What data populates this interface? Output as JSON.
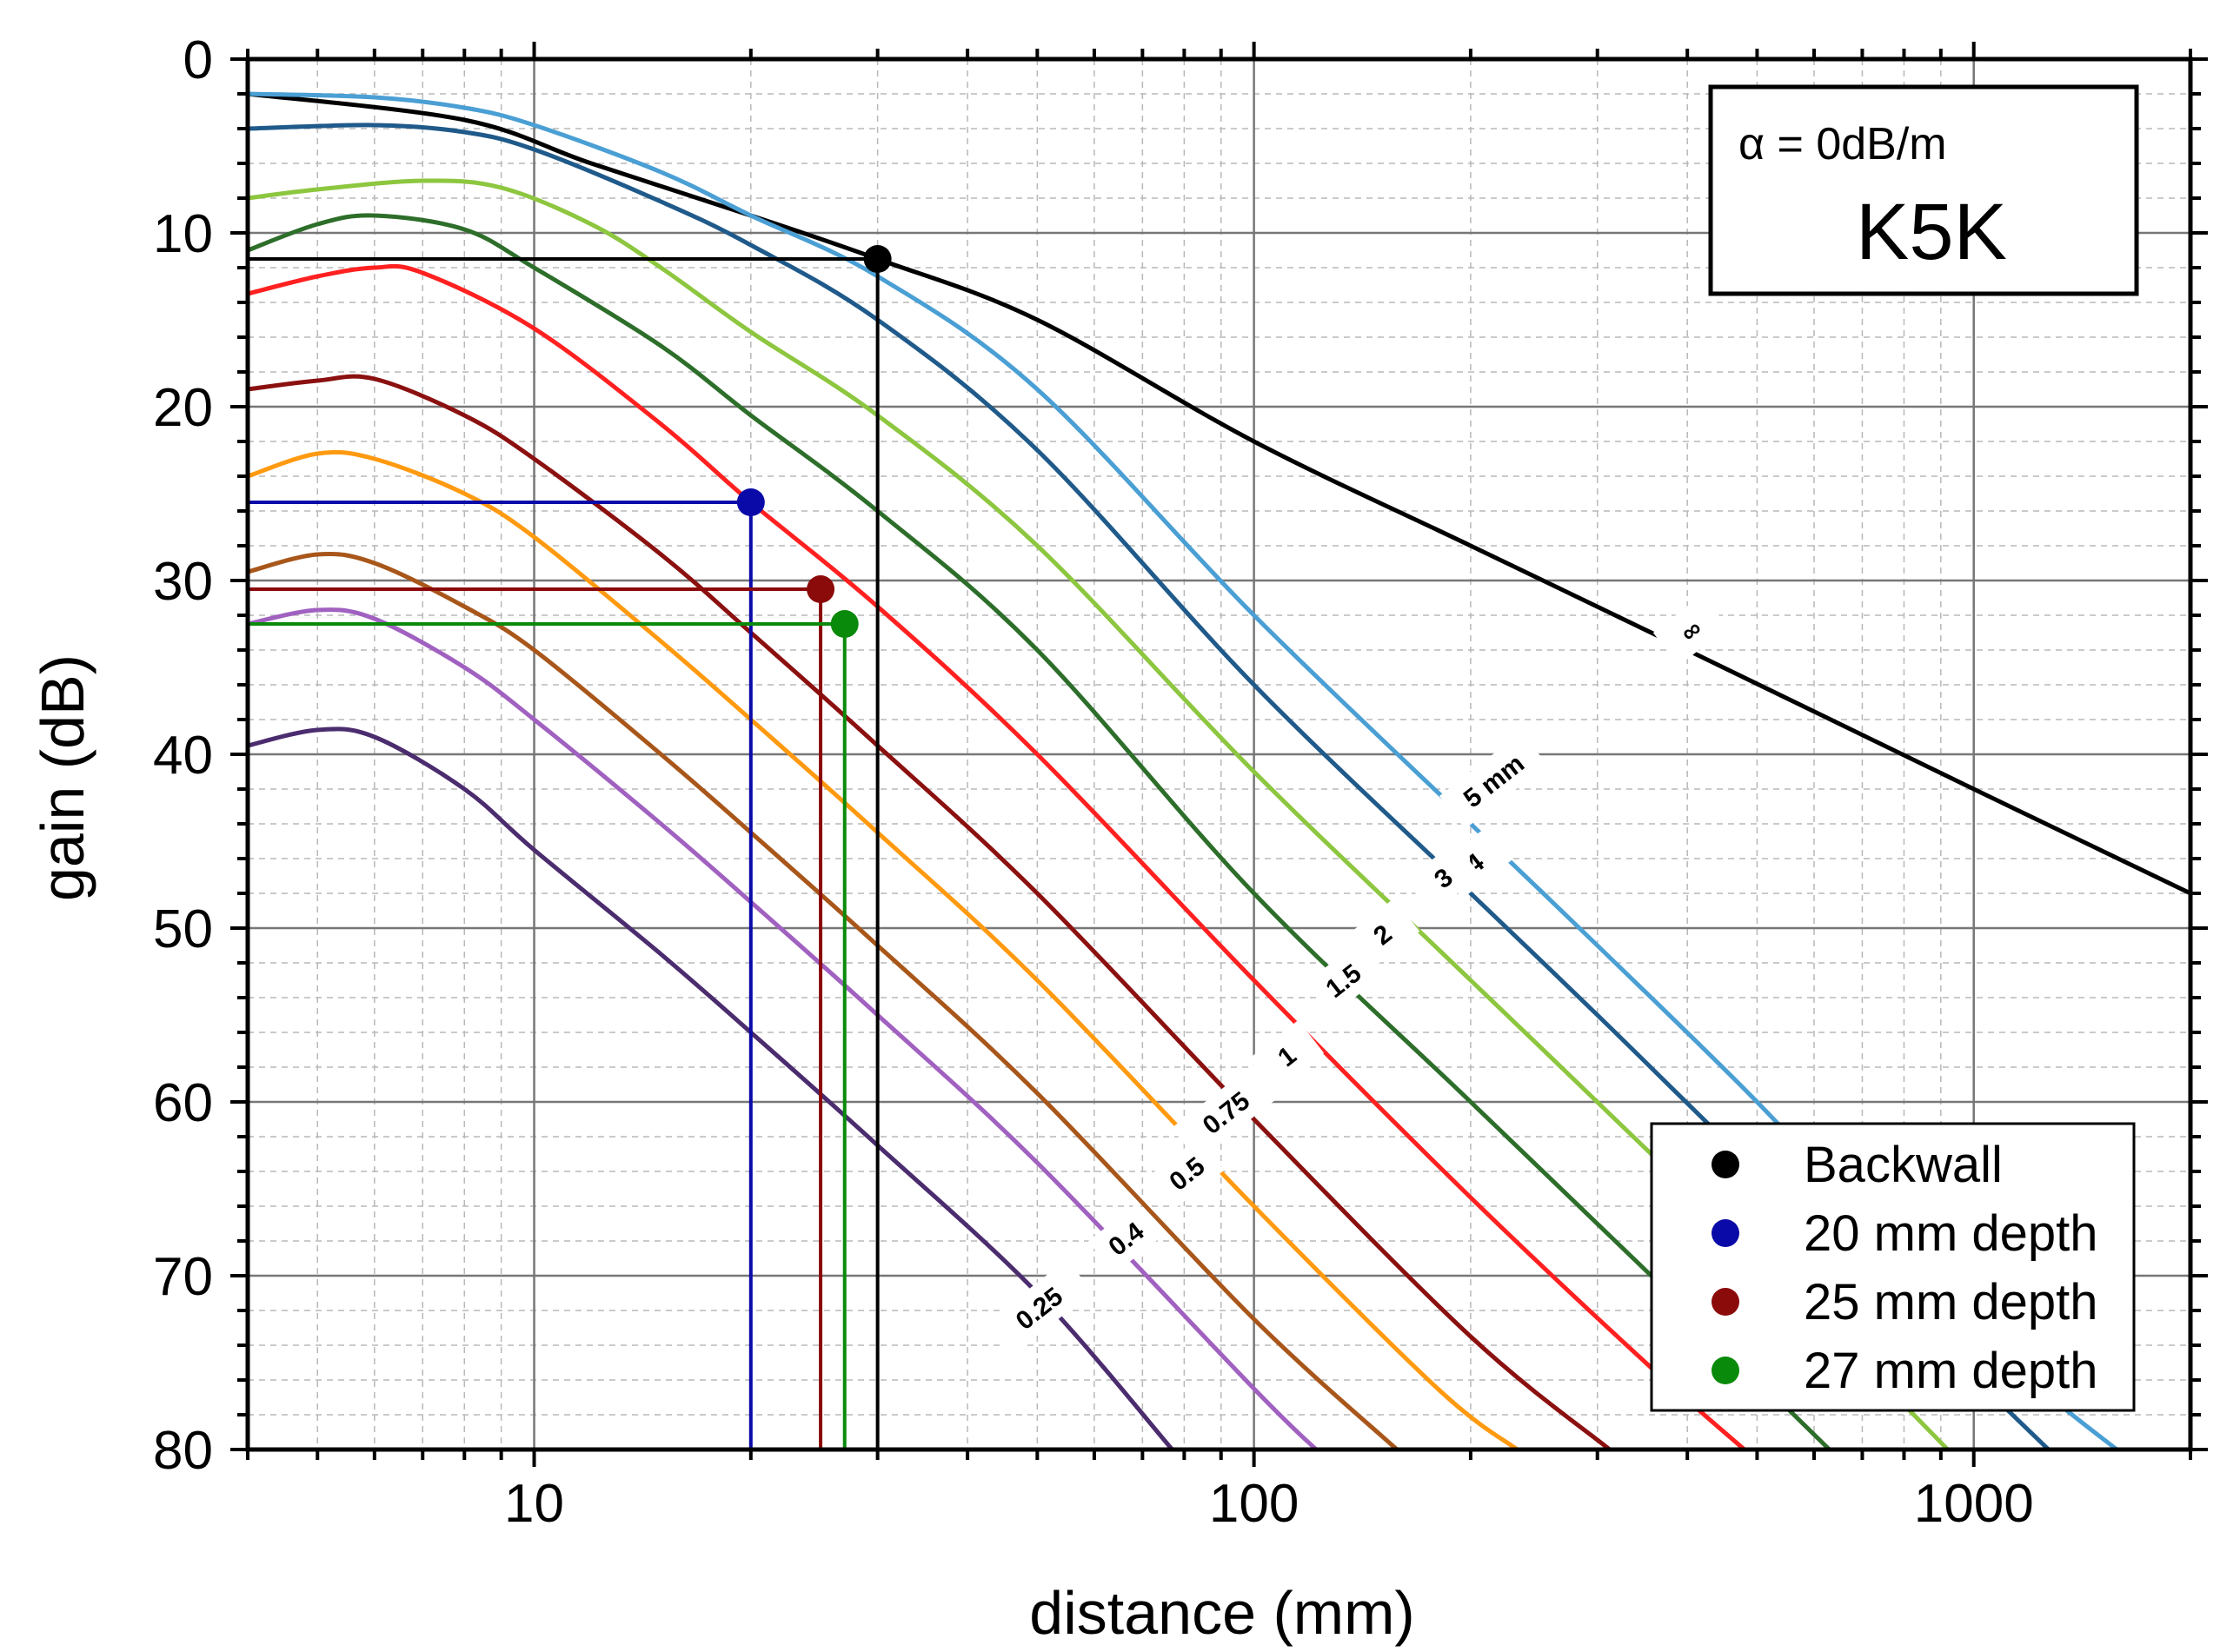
{
  "chart_data": {
    "type": "line",
    "title": "",
    "xlabel": "distance (mm)",
    "ylabel": "gain (dB)",
    "xscale": "log",
    "xlim": [
      4,
      2000
    ],
    "ylim": [
      0,
      80
    ],
    "y_inverted": true,
    "grid": true,
    "x_ticks": [
      10,
      100,
      1000
    ],
    "x_tick_labels": [
      "10",
      "100",
      "1000"
    ],
    "y_ticks": [
      0,
      10,
      20,
      30,
      40,
      50,
      60,
      70,
      80
    ],
    "y_tick_labels": [
      "0",
      "10",
      "20",
      "30",
      "40",
      "50",
      "60",
      "70",
      "80"
    ],
    "info_box": {
      "alpha_text": "α = 0dB/m",
      "probe": "K5K"
    },
    "series": [
      {
        "name": "∞",
        "label": "∞",
        "color": "#000000",
        "x": [
          4,
          8,
          12,
          20,
          30,
          50,
          100,
          200,
          400,
          1000,
          2000
        ],
        "y": [
          2,
          3.5,
          6,
          9,
          11.5,
          15,
          22,
          28,
          34,
          42,
          48
        ]
      },
      {
        "name": "5 mm",
        "label": "5   mm",
        "color": "#4a9fd4",
        "x": [
          4,
          6,
          8,
          10,
          15,
          20,
          30,
          50,
          100,
          200,
          300,
          500,
          800,
          1200,
          1580
        ],
        "y": [
          2,
          2.2,
          2.8,
          3.8,
          6.5,
          9,
          12.5,
          19,
          32,
          44,
          51,
          60,
          69,
          76,
          80
        ]
      },
      {
        "name": "4 mm",
        "label": "4",
        "color": "#1f5a8a",
        "x": [
          4,
          6,
          8,
          10,
          15,
          20,
          30,
          50,
          100,
          200,
          300,
          500,
          800,
          1270
        ],
        "y": [
          4,
          3.8,
          4.2,
          5.2,
          8.2,
          10.7,
          15,
          22.5,
          36,
          48,
          55,
          64,
          72,
          80
        ]
      },
      {
        "name": "3 mm",
        "label": "3",
        "color": "#8dc63f",
        "x": [
          4,
          5,
          7,
          9,
          12,
          15,
          20,
          30,
          50,
          100,
          200,
          400,
          700,
          920
        ],
        "y": [
          8,
          7.5,
          7,
          7.4,
          9.5,
          12,
          15.7,
          20.5,
          28,
          41,
          53,
          65,
          75,
          80
        ]
      },
      {
        "name": "2 mm",
        "label": "2",
        "color": "#2d6e2a",
        "x": [
          4,
          5,
          6,
          8,
          10,
          15,
          20,
          30,
          50,
          100,
          200,
          400,
          630
        ],
        "y": [
          11,
          9.5,
          9,
          9.8,
          12,
          16.5,
          20.5,
          26,
          34,
          48,
          60,
          72,
          80
        ]
      },
      {
        "name": "1.5 mm",
        "label": "1.5",
        "color": "#ff2020",
        "x": [
          4,
          5,
          6,
          7,
          10,
          15,
          20,
          30,
          50,
          100,
          200,
          350,
          480
        ],
        "y": [
          13.5,
          12.5,
          12,
          12.3,
          15.5,
          21,
          25.5,
          31.5,
          40,
          53,
          65.5,
          75,
          80
        ]
      },
      {
        "name": "1 mm",
        "label": "1",
        "color": "#8b1010",
        "x": [
          4,
          5,
          6,
          8,
          10,
          15,
          20,
          30,
          50,
          100,
          200,
          312
        ],
        "y": [
          19,
          18.5,
          18.4,
          20.5,
          23,
          28.5,
          33,
          39.5,
          48,
          61,
          73.5,
          80
        ]
      },
      {
        "name": "0.75 mm",
        "label": "0.75",
        "color": "#ff9a10",
        "x": [
          4,
          5,
          6,
          8,
          10,
          15,
          20,
          30,
          50,
          100,
          180,
          232
        ],
        "y": [
          24,
          22.7,
          23,
          25,
          27.5,
          33.5,
          38,
          44.5,
          53,
          66,
          76.5,
          80
        ]
      },
      {
        "name": "0.5 mm",
        "label": "0.5",
        "color": "#a8561a",
        "x": [
          4,
          5,
          6,
          8,
          10,
          15,
          20,
          30,
          50,
          100,
          158
        ],
        "y": [
          29.5,
          28.5,
          29,
          31.5,
          34,
          40,
          44.5,
          51,
          59.5,
          72.5,
          80
        ]
      },
      {
        "name": "0.4 mm",
        "label": "0.4",
        "color": "#a061c0",
        "x": [
          4,
          5,
          6,
          8,
          10,
          15,
          20,
          30,
          50,
          100,
          122
        ],
        "y": [
          32.5,
          31.7,
          32.2,
          35,
          38,
          44,
          48.5,
          55,
          63.5,
          76.5,
          80
        ]
      },
      {
        "name": "0.25 mm",
        "label": "0.25",
        "color": "#4b2c6e",
        "x": [
          4,
          5,
          6,
          8,
          10,
          15,
          20,
          30,
          50,
          77
        ],
        "y": [
          39.5,
          38.6,
          39,
          42,
          45.5,
          51.5,
          56,
          62.5,
          71,
          80
        ]
      }
    ],
    "markers": [
      {
        "name": "Backwall",
        "color": "#000000",
        "x": 30,
        "y": 11.5
      },
      {
        "name": "20 mm depth",
        "color": "#0a0aa8",
        "x": 20,
        "y": 25.5
      },
      {
        "name": "25 mm depth",
        "color": "#8b0a0a",
        "x": 25,
        "y": 30.5
      },
      {
        "name": "27 mm depth",
        "color": "#0a8a0a",
        "x": 27,
        "y": 32.5
      }
    ],
    "legend": {
      "placement": "bottom-right",
      "entries": [
        "Backwall",
        "20 mm depth",
        "25 mm depth",
        "27 mm depth"
      ]
    }
  }
}
